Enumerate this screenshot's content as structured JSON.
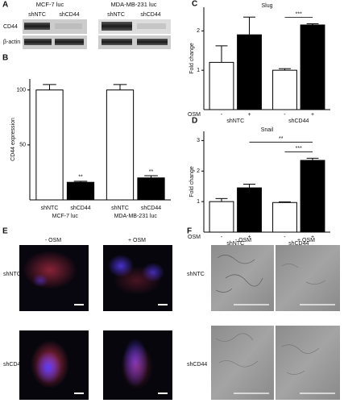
{
  "blot": {
    "panel_label": "A",
    "cell_lines": [
      "MCF-7 luc",
      "MDA-MB-231 luc"
    ],
    "lanes": [
      "shNTC",
      "shCD44",
      "shNTC",
      "shCD44"
    ],
    "proteins": [
      "CD44",
      "β-actin"
    ]
  },
  "chart_data": [
    {
      "type": "bar",
      "panel_label": "B",
      "y_label": "CD44 expression",
      "categories": [
        "MCF-7 luc",
        "MDA-MB-231 luc"
      ],
      "series": [
        {
          "name": "shNTC",
          "color": "#ffffff",
          "values": [
            100,
            100
          ],
          "errors": [
            5,
            5
          ]
        },
        {
          "name": "shCD44",
          "color": "#000000",
          "values": [
            16,
            20
          ],
          "errors": [
            1,
            2
          ]
        }
      ],
      "ylim": [
        0,
        110
      ],
      "yticks": [
        50,
        100
      ],
      "significance": [
        {
          "label": "**",
          "bars": [
            [
              1,
              0
            ]
          ]
        },
        {
          "label": "**",
          "bars": [
            [
              1,
              1
            ]
          ]
        }
      ]
    },
    {
      "type": "bar",
      "panel_label": "C",
      "title": "Slug",
      "y_label": "Fold change",
      "x_label": "OSM",
      "categories": [
        "shNTC",
        "shCD44"
      ],
      "series": [
        {
          "name": "-",
          "color": "#ffffff",
          "values": [
            1.2,
            1.0
          ],
          "errors": [
            0.42,
            0.04
          ]
        },
        {
          "name": "+",
          "color": "#000000",
          "values": [
            1.9,
            2.15
          ],
          "errors": [
            0.45,
            0.03
          ]
        }
      ],
      "ylim": [
        0,
        2.6
      ],
      "yticks": [
        1,
        2
      ],
      "significance": [
        {
          "label": "***",
          "bars": [
            [
              0,
              1
            ],
            [
              1,
              1
            ]
          ]
        }
      ]
    },
    {
      "type": "bar",
      "panel_label": "D",
      "title": "Snail",
      "y_label": "Fold change",
      "x_label": "OSM",
      "categories": [
        "shNTC",
        "shCD44"
      ],
      "series": [
        {
          "name": "-",
          "color": "#ffffff",
          "values": [
            1.0,
            0.97
          ],
          "errors": [
            0.1,
            0.02
          ]
        },
        {
          "name": "+",
          "color": "#000000",
          "values": [
            1.45,
            2.35
          ],
          "errors": [
            0.12,
            0.07
          ]
        }
      ],
      "ylim": [
        0,
        3.3
      ],
      "yticks": [
        1,
        2,
        3
      ],
      "significance": [
        {
          "label": "**",
          "bars": [
            [
              1,
              0
            ],
            [
              1,
              1
            ]
          ]
        },
        {
          "label": "***",
          "bars": [
            [
              0,
              1
            ],
            [
              1,
              1
            ]
          ]
        }
      ]
    }
  ],
  "fluorescence": {
    "panel_label": "E",
    "columns": [
      "- OSM",
      "+ OSM"
    ],
    "rows": [
      "shNTC",
      "shCD44"
    ]
  },
  "brightfield": {
    "panel_label": "F",
    "columns": [
      "- OSM",
      "+ OSM"
    ],
    "rows": [
      "shNTC",
      "shCD44"
    ]
  }
}
